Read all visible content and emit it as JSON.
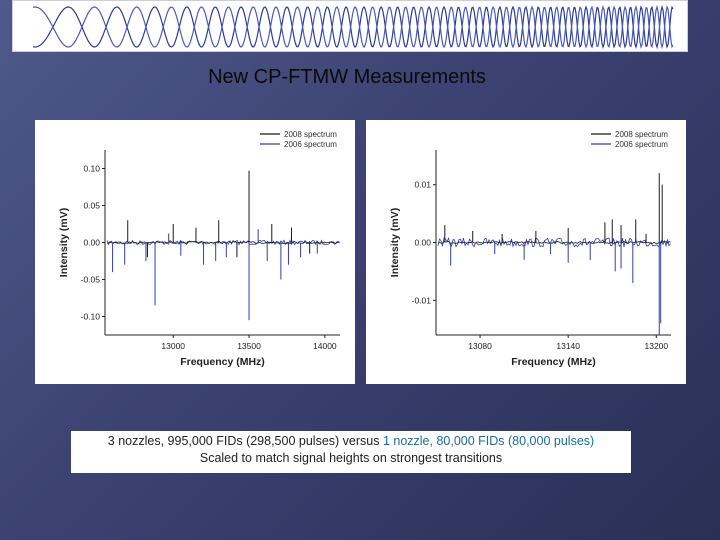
{
  "title": "New CP-FTMW Measurements",
  "caption": {
    "line1_a": "3 nozzles, 995,000 FIDs (298,500 pulses) versus ",
    "line1_b": "1 nozzle, 80,000 FIDs (80,000 pulses)",
    "line2": "Scaled to match signal heights on strongest transitions",
    "highlight_color": "#1b6aa8"
  },
  "colors": {
    "series_2008": "#1a1a1a",
    "series_2006": "#2f3fb0"
  },
  "chart_data": [
    {
      "type": "line",
      "xlabel": "Frequency (MHz)",
      "ylabel": "Intensity (mV)",
      "xlim": [
        12550,
        14100
      ],
      "ylim": [
        -0.125,
        0.125
      ],
      "xticks": [
        13000,
        13500,
        14000
      ],
      "xtick_labels": [
        "13000",
        "13500",
        "14000"
      ],
      "yticks": [
        0.1,
        0.05,
        0.0,
        -0.05,
        -0.1
      ],
      "ytick_labels": [
        "0.10",
        "0.05",
        "0.00",
        "-0.05",
        "-0.10"
      ],
      "legend": "top-right",
      "series": [
        {
          "name": "2008 spectrum",
          "peaks": [
            [
              12700,
              0.03
            ],
            [
              12830,
              -0.02
            ],
            [
              13000,
              0.025
            ],
            [
              13150,
              0.02
            ],
            [
              13300,
              0.03
            ],
            [
              13420,
              -0.02
            ],
            [
              13500,
              0.097
            ],
            [
              13650,
              0.025
            ],
            [
              13780,
              0.02
            ],
            [
              13900,
              -0.015
            ]
          ]
        },
        {
          "name": "2006 spectrum",
          "peaks": [
            [
              12600,
              -0.04
            ],
            [
              12680,
              -0.03
            ],
            [
              12820,
              -0.025
            ],
            [
              12880,
              -0.085
            ],
            [
              12970,
              0.012
            ],
            [
              13050,
              -0.018
            ],
            [
              13200,
              -0.03
            ],
            [
              13280,
              -0.025
            ],
            [
              13350,
              -0.02
            ],
            [
              13500,
              -0.105
            ],
            [
              13560,
              0.018
            ],
            [
              13620,
              -0.025
            ],
            [
              13710,
              -0.05
            ],
            [
              13760,
              -0.03
            ],
            [
              13840,
              -0.02
            ],
            [
              13950,
              -0.015
            ]
          ]
        }
      ]
    },
    {
      "type": "line",
      "xlabel": "Frequency (MHz)",
      "ylabel": "Intensity (mV)",
      "xlim": [
        13050,
        13210
      ],
      "ylim": [
        -0.016,
        0.016
      ],
      "xticks": [
        13080,
        13140,
        13200
      ],
      "xtick_labels": [
        "13080",
        "13140",
        "13200"
      ],
      "yticks": [
        0.01,
        0.0,
        -0.01
      ],
      "ytick_labels": [
        "0.01",
        "0.00",
        "-0.01"
      ],
      "legend": "top-right",
      "series": [
        {
          "name": "2008 spectrum",
          "peaks": [
            [
              13056,
              0.003
            ],
            [
              13075,
              0.002
            ],
            [
              13095,
              0.0015
            ],
            [
              13118,
              0.002
            ],
            [
              13140,
              0.0025
            ],
            [
              13165,
              0.0035
            ],
            [
              13170,
              0.004
            ],
            [
              13176,
              0.003
            ],
            [
              13186,
              0.004
            ],
            [
              13193,
              0.0015
            ],
            [
              13202,
              0.012
            ],
            [
              13204,
              0.01
            ]
          ]
        },
        {
          "name": "2006 spectrum",
          "peaks": [
            [
              13060,
              -0.004
            ],
            [
              13090,
              -0.002
            ],
            [
              13110,
              -0.003
            ],
            [
              13128,
              -0.002
            ],
            [
              13140,
              -0.0035
            ],
            [
              13155,
              -0.003
            ],
            [
              13172,
              -0.005
            ],
            [
              13176,
              -0.0045
            ],
            [
              13184,
              -0.007
            ],
            [
              13202,
              -0.016
            ],
            [
              13203,
              -0.014
            ]
          ]
        }
      ]
    }
  ]
}
